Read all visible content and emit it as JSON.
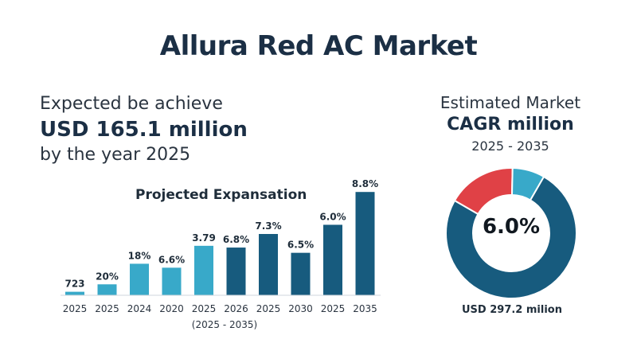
{
  "title": "Allura Red AC Market",
  "headline": {
    "line1": "Expected be achieve",
    "line2": "USD 165.1 million",
    "line3": "by the year 2025"
  },
  "cagr": {
    "line1": "Estimated Market",
    "line2": "CAGR million",
    "line3": "2025 - 2035",
    "center": "6.0%",
    "caption": "USD 297.2 milion"
  },
  "chart_data": [
    {
      "type": "bar",
      "title": "Projected Expansation",
      "xlabel": "(2025 - 2035)",
      "categories": [
        "2025",
        "2025",
        "2024",
        "2020",
        "2025",
        "2026",
        "2025",
        "2030",
        "2025",
        "2035"
      ],
      "data_labels": [
        "723",
        "20%",
        "18%",
        "6.6%",
        "3.79",
        "6.8%",
        "7.3%",
        "6.5%",
        "6.0%",
        "8.8%"
      ],
      "values": [
        0.8,
        2.5,
        7.2,
        6.3,
        11.3,
        10.9,
        14.0,
        9.7,
        16.1,
        23.6
      ],
      "bar_colors": [
        "#38a9c9",
        "#38a9c9",
        "#38a9c9",
        "#38a9c9",
        "#38a9c9",
        "#175b7e",
        "#175b7e",
        "#175b7e",
        "#175b7e",
        "#175b7e"
      ],
      "ylim": [
        0,
        24
      ],
      "grid": false
    },
    {
      "type": "pie",
      "variant": "donut",
      "labels": [
        "",
        "",
        ""
      ],
      "values": [
        75,
        17,
        8
      ],
      "colors": [
        "#175b7e",
        "#e04146",
        "#38a9c9"
      ]
    }
  ]
}
